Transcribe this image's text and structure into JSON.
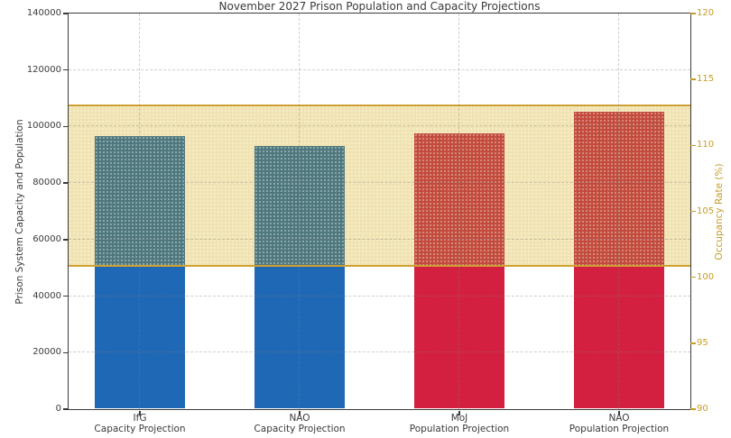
{
  "title": "November 2027 Prison Population and Capacity Projections",
  "chart_data": {
    "type": "bar",
    "title": "November 2027 Prison Population and Capacity Projections",
    "categories": [
      "IfG\nCapacity Projection",
      "NAO\nCapacity Projection",
      "MoJ\nPopulation Projection",
      "NAO\nPopulation Projection"
    ],
    "values": [
      96500,
      93000,
      97500,
      105000
    ],
    "ylabel": "Prison System Capacity and Population",
    "y2label": "Occupancy Rate (%)",
    "ylim": [
      0,
      140000
    ],
    "y2lim": [
      90,
      120
    ],
    "yticks": [
      0,
      20000,
      40000,
      60000,
      80000,
      100000,
      120000,
      140000
    ],
    "y2ticks": [
      90,
      95,
      100,
      105,
      110,
      115,
      120
    ],
    "grid": {
      "horizontal": true,
      "vertical": true,
      "style": "dashed"
    },
    "legend": "none",
    "band": {
      "description": "horizontal shaded occupancy band across full plot width",
      "y2_range": [
        100.8,
        113.0
      ],
      "y_range_equivalent": [
        50500,
        107300
      ],
      "fill": "#f0e3b1",
      "edge": "#cfa032"
    },
    "bars": [
      {
        "label_line1": "IfG",
        "label_line2": "Capacity Projection",
        "value": 96500,
        "color": "#1f68b5",
        "color_in_band": "#4e787e"
      },
      {
        "label_line1": "NAO",
        "label_line2": "Capacity Projection",
        "value": 93000,
        "color": "#1f68b5",
        "color_in_band": "#4e787e"
      },
      {
        "label_line1": "MoJ",
        "label_line2": "Population Projection",
        "value": 97500,
        "color": "#d42040",
        "color_in_band": "#c24b3c"
      },
      {
        "label_line1": "NAO",
        "label_line2": "Population Projection",
        "value": 105000,
        "color": "#d42040",
        "color_in_band": "#c24b3c"
      }
    ],
    "colors": {
      "axis_text": "#3a3a3a",
      "y2_axis_text": "#c79b25",
      "spine": "#3a3a3a",
      "capacity_bar": "#1f68b5",
      "population_bar": "#d42040",
      "capacity_bar_in_band": "#4e787e",
      "population_bar_in_band": "#c24b3c",
      "band_fill": "#f0e3b1",
      "band_edge": "#cfa032"
    }
  }
}
